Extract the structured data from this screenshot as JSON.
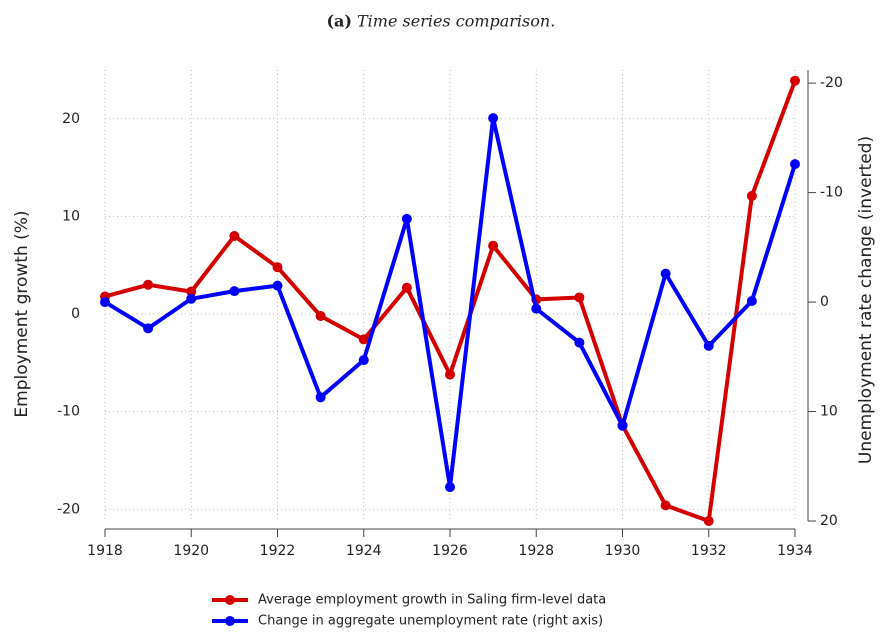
{
  "chart_data": {
    "type": "line",
    "panel_label": "(a)",
    "title": "Time series comparison.",
    "ylabel": "Employment growth (%)",
    "y2label": "Unemployment rate change (inverted)",
    "x": [
      1918,
      1919,
      1920,
      1921,
      1922,
      1923,
      1924,
      1925,
      1926,
      1927,
      1928,
      1929,
      1930,
      1931,
      1932,
      1933,
      1934
    ],
    "xlim": [
      1918,
      1934
    ],
    "xticks": [
      1918,
      1920,
      1922,
      1924,
      1926,
      1928,
      1930,
      1932,
      1934
    ],
    "ylim": [
      -21.2,
      25
    ],
    "yticks": [
      -20,
      -10,
      0,
      10,
      20
    ],
    "y2lim": [
      -21.2,
      20
    ],
    "y2ticks": [
      -20,
      -10,
      0,
      10,
      20
    ],
    "y2_inverted": true,
    "grid": true,
    "legend": "bottom",
    "series": [
      {
        "name": "Average employment growth in Saling firm-level data",
        "color": "#d40000",
        "values": [
          1.8,
          3.0,
          2.3,
          8.0,
          4.8,
          -0.2,
          -2.6,
          2.7,
          -6.2,
          7.0,
          1.5,
          1.7,
          -11.4,
          -19.6,
          -21.2,
          12.1,
          23.9
        ]
      },
      {
        "name": "Change in aggregate unemployment rate (right axis)",
        "color": "#0000ff",
        "axis": "y2",
        "values": [
          0,
          2.4,
          -0.3,
          -1.0,
          -1.5,
          8.7,
          5.3,
          -7.6,
          16.9,
          -16.8,
          0.6,
          3.7,
          11.3,
          -2.6,
          4.0,
          -0.1,
          -12.6
        ]
      }
    ]
  }
}
